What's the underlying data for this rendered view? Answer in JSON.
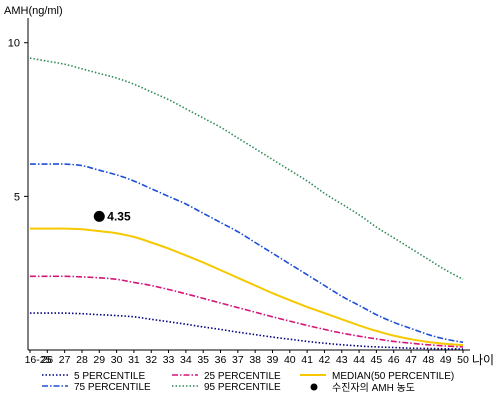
{
  "chart_data": {
    "type": "line",
    "ylabel": "AMH(ng/ml)",
    "xlabel": "나이",
    "ylim": [
      0,
      11
    ],
    "yticks": [
      5,
      10
    ],
    "categories": [
      "16-25",
      "26",
      "27",
      "28",
      "29",
      "30",
      "31",
      "32",
      "33",
      "34",
      "35",
      "36",
      "37",
      "38",
      "39",
      "40",
      "41",
      "42",
      "43",
      "44",
      "45",
      "46",
      "47",
      "48",
      "49",
      "50"
    ],
    "series": [
      {
        "name": "5 PERCENTILE",
        "color": "#000080",
        "dash": "dotted",
        "values": [
          1.2,
          1.2,
          1.2,
          1.18,
          1.15,
          1.12,
          1.08,
          1.0,
          0.92,
          0.84,
          0.75,
          0.67,
          0.58,
          0.5,
          0.42,
          0.35,
          0.28,
          0.22,
          0.17,
          0.13,
          0.1,
          0.08,
          0.06,
          0.05,
          0.04,
          0.03
        ]
      },
      {
        "name": "25 PERCENTILE",
        "color": "#d4157a",
        "dash": "dashdot",
        "values": [
          2.4,
          2.4,
          2.4,
          2.38,
          2.35,
          2.3,
          2.2,
          2.1,
          1.97,
          1.83,
          1.68,
          1.53,
          1.38,
          1.23,
          1.08,
          0.94,
          0.8,
          0.67,
          0.55,
          0.45,
          0.36,
          0.28,
          0.22,
          0.17,
          0.13,
          0.1
        ]
      },
      {
        "name": "MEDIAN(50 PERCENTILE)",
        "color": "#f5c800",
        "dash": "solid",
        "values": [
          3.95,
          3.95,
          3.95,
          3.93,
          3.87,
          3.8,
          3.68,
          3.5,
          3.3,
          3.08,
          2.85,
          2.6,
          2.35,
          2.1,
          1.85,
          1.62,
          1.4,
          1.2,
          1.0,
          0.8,
          0.62,
          0.47,
          0.35,
          0.26,
          0.2,
          0.16
        ]
      },
      {
        "name": "75 PERCENTILE",
        "color": "#1f4fd8",
        "dash": "dashdot",
        "values": [
          6.05,
          6.05,
          6.05,
          6.0,
          5.85,
          5.7,
          5.5,
          5.25,
          5.0,
          4.75,
          4.45,
          4.15,
          3.85,
          3.5,
          3.15,
          2.8,
          2.45,
          2.1,
          1.75,
          1.45,
          1.15,
          0.9,
          0.7,
          0.5,
          0.35,
          0.25
        ]
      },
      {
        "name": "95 PERCENTILE",
        "color": "#2e8b57",
        "dash": "dotted",
        "values": [
          9.5,
          9.4,
          9.3,
          9.15,
          9.0,
          8.85,
          8.65,
          8.4,
          8.15,
          7.85,
          7.55,
          7.25,
          6.9,
          6.55,
          6.2,
          5.85,
          5.5,
          5.1,
          4.75,
          4.4,
          4.0,
          3.65,
          3.3,
          2.95,
          2.6,
          2.3
        ]
      }
    ],
    "marker": {
      "name": "수진자의 AMH 농도",
      "x": "29",
      "y": 4.35,
      "label": "4.35",
      "color": "#000000"
    },
    "legend_position": "bottom"
  }
}
